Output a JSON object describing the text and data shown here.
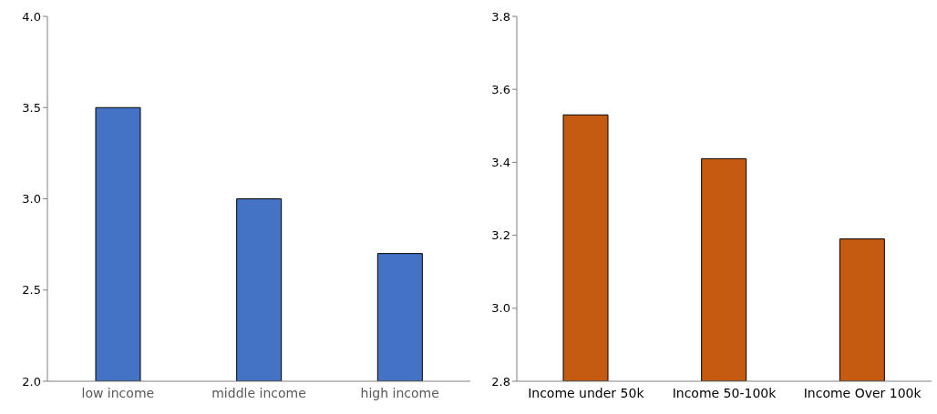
{
  "chart_data": [
    {
      "type": "bar",
      "categories": [
        "low income",
        "middle income",
        "high income"
      ],
      "values": [
        3.5,
        3.0,
        2.7
      ],
      "color": "#4472c4",
      "ylim": [
        2.0,
        4.0
      ],
      "yticks": [
        {
          "value": 2,
          "label": "2.0"
        },
        {
          "value": 2.5,
          "label": "2.5"
        },
        {
          "value": 3,
          "label": "3.0"
        },
        {
          "value": 3.5,
          "label": "3.5"
        },
        {
          "value": 4,
          "label": "4.0"
        }
      ]
    },
    {
      "type": "bar",
      "categories": [
        "Income under 50k",
        "Income 50-100k",
        "Income Over 100k"
      ],
      "values": [
        3.53,
        3.41,
        3.19
      ],
      "color": "#c55a11",
      "ylim": [
        2.8,
        3.8
      ],
      "yticks": [
        {
          "value": 2.8,
          "label": "2.8"
        },
        {
          "value": 3.0,
          "label": "3.0"
        },
        {
          "value": 3.2,
          "label": "3.2"
        },
        {
          "value": 3.4,
          "label": "3.4"
        },
        {
          "value": 3.6,
          "label": "3.6"
        },
        {
          "value": 3.8,
          "label": "3.8"
        }
      ]
    }
  ]
}
